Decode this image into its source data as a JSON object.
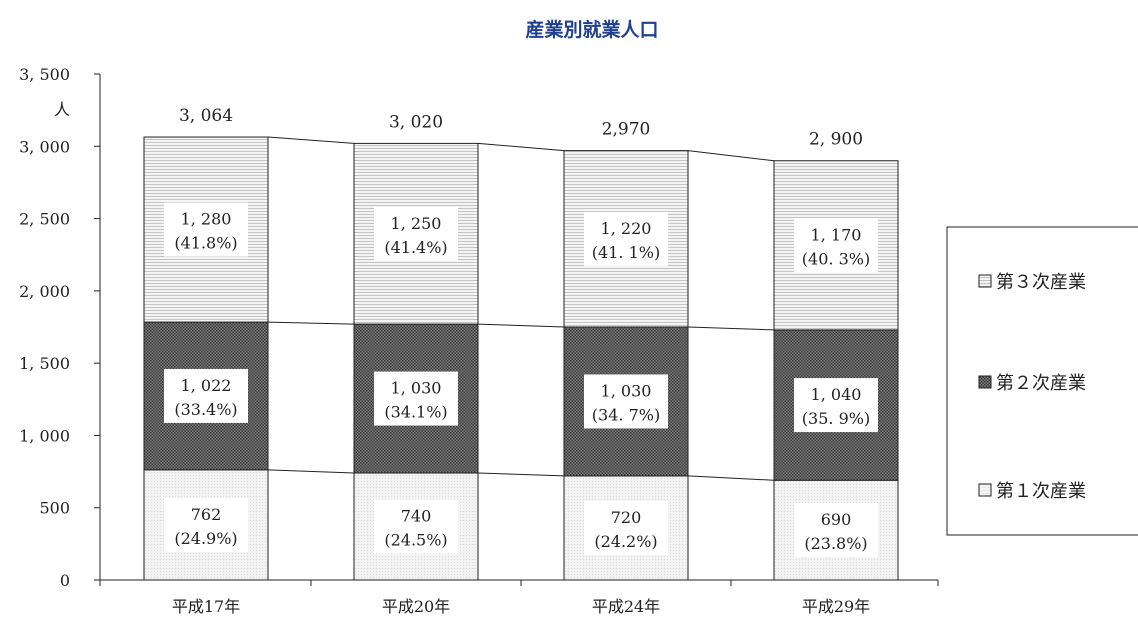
{
  "chart_data": {
    "type": "bar",
    "stacked": true,
    "title": "産業別就業人口",
    "ylabel": "人",
    "ylim": [
      0,
      3500
    ],
    "ytick_step": 500,
    "categories": [
      "平成17年",
      "平成20年",
      "平成24年",
      "平成29年"
    ],
    "totals": [
      "3, 064",
      "3, 020",
      "2,970",
      "2, 900"
    ],
    "series": [
      {
        "name": "第１次産業",
        "values": [
          762,
          740,
          720,
          690
        ],
        "value_labels": [
          "762",
          "740",
          "720",
          "690"
        ],
        "pct_labels": [
          "(24.9%)",
          "(24.5%)",
          "(24.2%)",
          "(23.8%)"
        ],
        "pattern": "light-dots",
        "color": "#ededed"
      },
      {
        "name": "第２次産業",
        "values": [
          1022,
          1030,
          1030,
          1040
        ],
        "value_labels": [
          "1, 022",
          "1, 030",
          "1, 030",
          "1, 040"
        ],
        "pct_labels": [
          "(33.4%)",
          "(34.1%)",
          "(34. 7%)",
          "(35. 9%)"
        ],
        "pattern": "dark-hatch",
        "color": "#5a5a5a"
      },
      {
        "name": "第３次産業",
        "values": [
          1280,
          1250,
          1220,
          1170
        ],
        "value_labels": [
          "1, 280",
          "1, 250",
          "1, 220",
          "1, 170"
        ],
        "pct_labels": [
          "(41.8%)",
          "(41.4%)",
          "(41. 1%)",
          "(40. 3%)"
        ],
        "pattern": "light-lines",
        "color": "#dcdcdc"
      }
    ],
    "legend_order": [
      "第３次産業",
      "第２次産業",
      "第１次産業"
    ],
    "legend": "right",
    "grid": false
  }
}
